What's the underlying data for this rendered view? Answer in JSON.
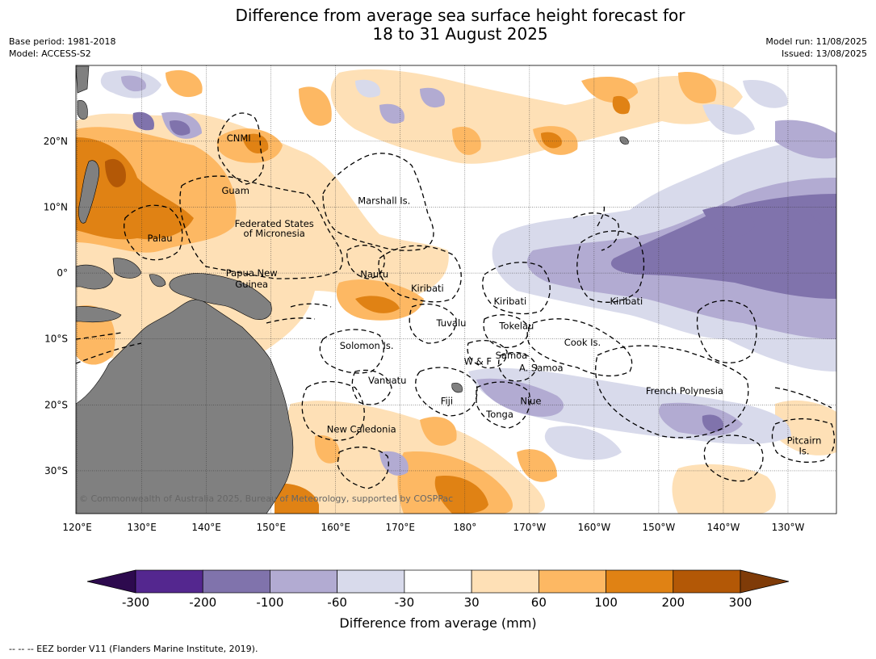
{
  "title_line1": "Difference from average sea surface height forecast for",
  "title_line2": "18 to 31 August 2025",
  "meta": {
    "base_period": "Base period: 1981-2018",
    "model": "Model: ACCESS-S2",
    "model_run": "Model run: 11/08/2025",
    "issued": "Issued: 13/08/2025"
  },
  "copyright": "© Commonwealth of Australia 2025, Bureau of Meteorology, supported by COSPPac",
  "axes": {
    "lon_ticks": [
      120,
      130,
      140,
      150,
      160,
      170,
      180,
      -170,
      -160,
      -150,
      -140,
      -130
    ],
    "lon_labels": [
      "120°E",
      "130°E",
      "140°E",
      "150°E",
      "160°E",
      "170°E",
      "180°",
      "170°W",
      "160°W",
      "150°W",
      "140°W",
      "130°W"
    ],
    "lat_ticks": [
      20,
      10,
      0,
      -10,
      -20,
      -30
    ],
    "lat_labels": [
      "20°N",
      "10°N",
      "0°",
      "10°S",
      "20°S",
      "30°S"
    ],
    "lon_range": [
      119.8,
      237.5
    ],
    "lat_range": [
      -36.5,
      31.5
    ]
  },
  "colorbar": {
    "label": "Difference from average (mm)",
    "tick_labels": [
      "-300",
      "-200",
      "-100",
      "-60",
      "-30",
      "30",
      "60",
      "100",
      "200",
      "300"
    ],
    "under_color": "#2d0a4e",
    "colors": [
      "#54278f",
      "#8073ac",
      "#b2abd2",
      "#d8daeb",
      "#ffffff",
      "#fee0b6",
      "#fdb863",
      "#e08214",
      "#b35806"
    ],
    "over_color": "#7f3b08"
  },
  "land_color": "#808080",
  "labels": [
    {
      "text": "CNMI",
      "lon": 145.0,
      "lat": 20.5
    },
    {
      "text": "Guam",
      "lon": 144.5,
      "lat": 12.5
    },
    {
      "text": "Marshall Is.",
      "lon": 167.5,
      "lat": 11.0
    },
    {
      "text": "Federated States",
      "lon": 150.5,
      "lat": 7.5
    },
    {
      "text": "of Micronesia",
      "lon": 150.5,
      "lat": 6.0
    },
    {
      "text": "Palau",
      "lon": 132.8,
      "lat": 5.3
    },
    {
      "text": "Papua New",
      "lon": 147.0,
      "lat": 0.0
    },
    {
      "text": "Guinea",
      "lon": 147.0,
      "lat": -1.7
    },
    {
      "text": "Nauru",
      "lon": 166.0,
      "lat": -0.2
    },
    {
      "text": "Kiribati",
      "lon": 174.2,
      "lat": -2.3
    },
    {
      "text": "Kiribati",
      "lon": 187.0,
      "lat": -4.3
    },
    {
      "text": "Kiribati",
      "lon": 205.0,
      "lat": -4.3
    },
    {
      "text": "Tuvalu",
      "lon": 177.9,
      "lat": -7.6
    },
    {
      "text": "Tokelau",
      "lon": 188.0,
      "lat": -8.0
    },
    {
      "text": "Solomon Is.",
      "lon": 164.8,
      "lat": -11.0
    },
    {
      "text": "Cook Is.",
      "lon": 198.2,
      "lat": -10.5
    },
    {
      "text": "W & F",
      "lon": 182.0,
      "lat": -13.4
    },
    {
      "text": "Samoa",
      "lon": 187.2,
      "lat": -12.5
    },
    {
      "text": "A. Samoa",
      "lon": 191.8,
      "lat": -14.4
    },
    {
      "text": "Vanuatu",
      "lon": 168.0,
      "lat": -16.3
    },
    {
      "text": "Fiji",
      "lon": 177.2,
      "lat": -19.4
    },
    {
      "text": "Niue",
      "lon": 190.2,
      "lat": -19.4
    },
    {
      "text": "Tonga",
      "lon": 185.4,
      "lat": -21.4
    },
    {
      "text": "French Polynesia",
      "lon": 214.0,
      "lat": -17.9
    },
    {
      "text": "New Caledonia",
      "lon": 164.0,
      "lat": -23.7
    },
    {
      "text": "Pitcairn",
      "lon": 232.5,
      "lat": -25.4
    },
    {
      "text": "Is.",
      "lon": 232.5,
      "lat": -27.0
    }
  ],
  "footer": "--  --  -- EEZ border V11 (Flanders Marine Institute, 2019)."
}
